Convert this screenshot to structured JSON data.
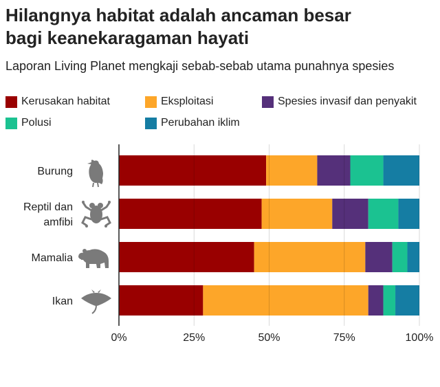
{
  "title_line1": "Hilangnya habitat adalah ancaman besar",
  "title_line2": "bagi keanekaragaman hayati",
  "subtitle": "Laporan Living Planet mengkaji sebab-sebab utama punahnya spesies",
  "legend": [
    {
      "label": "Kerusakan habitat",
      "color": "#990000"
    },
    {
      "label": "Eksploitasi",
      "color": "#FDA629"
    },
    {
      "label": "Spesies invasif dan penyakit",
      "color": "#55307A"
    },
    {
      "label": "Polusi",
      "color": "#1BC291"
    },
    {
      "label": "Perubahan iklim",
      "color": "#157DA3"
    }
  ],
  "chart_data": {
    "type": "bar",
    "orientation": "horizontal",
    "stacked": true,
    "categories": [
      {
        "label_lines": [
          "Burung"
        ],
        "icon": "bird-icon"
      },
      {
        "label_lines": [
          "Reptil dan",
          "amfibi"
        ],
        "icon": "frog-icon"
      },
      {
        "label_lines": [
          "Mamalia"
        ],
        "icon": "bear-icon"
      },
      {
        "label_lines": [
          "Ikan"
        ],
        "icon": "stingray-icon"
      }
    ],
    "series": [
      {
        "name": "Kerusakan habitat",
        "color": "#990000",
        "values": [
          49,
          47.5,
          45,
          28
        ]
      },
      {
        "name": "Eksploitasi",
        "color": "#FDA629",
        "values": [
          17,
          23.5,
          37,
          55
        ]
      },
      {
        "name": "Spesies invasif dan penyakit",
        "color": "#55307A",
        "values": [
          11,
          12,
          9,
          5
        ]
      },
      {
        "name": "Polusi",
        "color": "#1BC291",
        "values": [
          11,
          10,
          5,
          4
        ]
      },
      {
        "name": "Perubahan iklim",
        "color": "#157DA3",
        "values": [
          12,
          7,
          4,
          8
        ]
      }
    ],
    "xlim": [
      0,
      100
    ],
    "xticks": [
      0,
      25,
      50,
      75,
      100
    ],
    "xtick_labels": [
      "0%",
      "25%",
      "50%",
      "75%",
      "100%"
    ],
    "grid": true,
    "legend_position": "top"
  }
}
